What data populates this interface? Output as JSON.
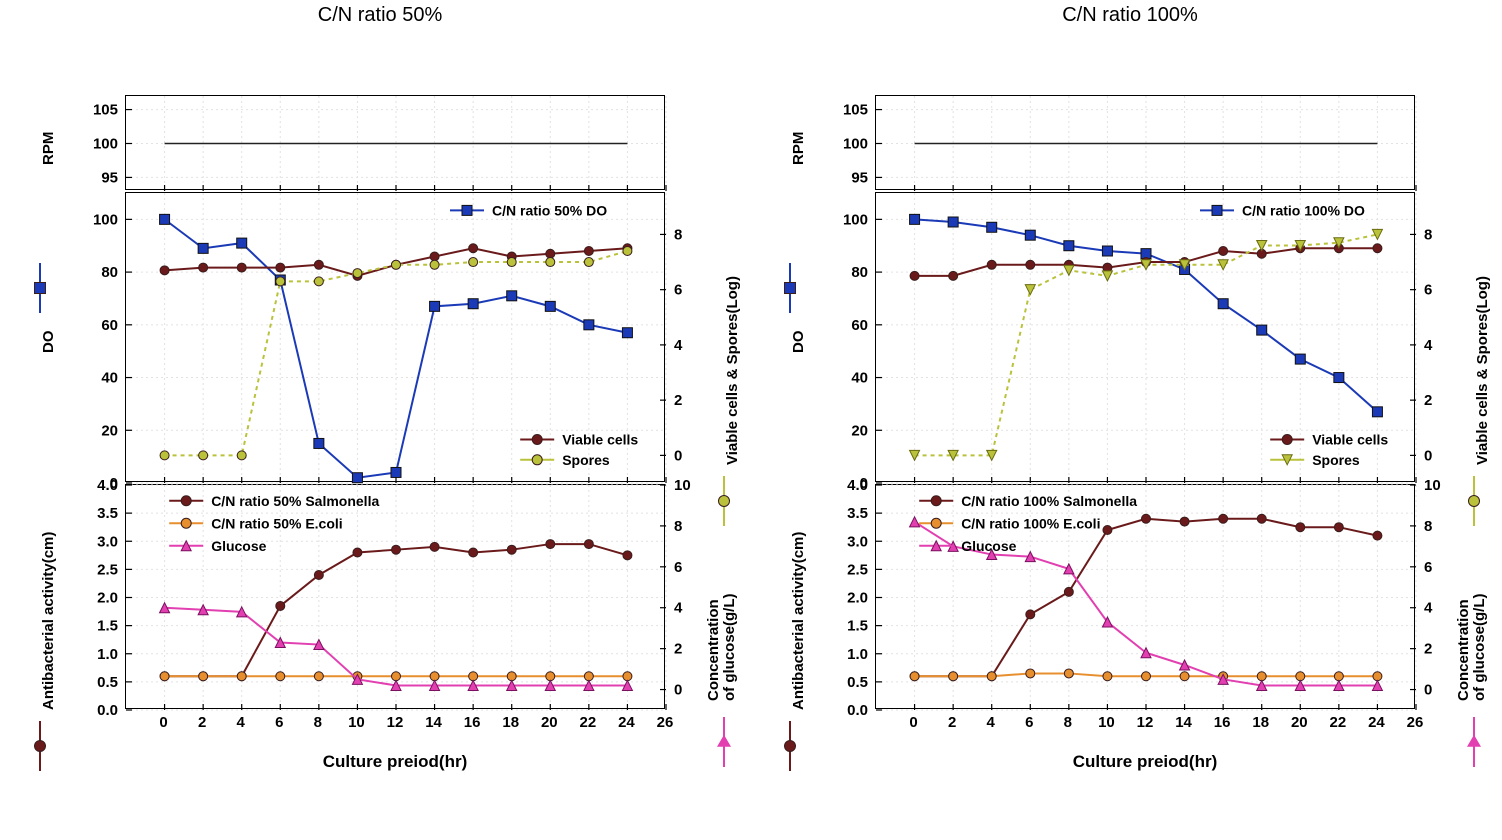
{
  "global": {
    "x": {
      "min": -2,
      "max": 26,
      "ticks": [
        0,
        2,
        4,
        6,
        8,
        10,
        12,
        14,
        16,
        18,
        20,
        22,
        24,
        26
      ],
      "label": "Culture preiod(hr)"
    },
    "grid_color": "#e2e2e2",
    "grid_dash": "2,3",
    "bg": "#ffffff"
  },
  "left": {
    "title": "C/N ratio 50%",
    "rpm": {
      "ylim": [
        93,
        107
      ],
      "yticks": [
        95,
        100,
        105
      ],
      "ylabel": "RPM",
      "series": [
        {
          "name": "RPM",
          "color": "#222222",
          "width": 1.5,
          "marker": "none",
          "points": [
            [
              0,
              100
            ],
            [
              2,
              100
            ],
            [
              4,
              100
            ],
            [
              6,
              100
            ],
            [
              8,
              100
            ],
            [
              10,
              100
            ],
            [
              12,
              100
            ],
            [
              14,
              100
            ],
            [
              16,
              100
            ],
            [
              18,
              100
            ],
            [
              20,
              100
            ],
            [
              22,
              100
            ],
            [
              24,
              100
            ]
          ]
        }
      ]
    },
    "do": {
      "ylim": [
        0,
        110
      ],
      "yticks": [
        0,
        20,
        40,
        60,
        80,
        100
      ],
      "y2lim": [
        -1,
        9.5
      ],
      "y2ticks": [
        0,
        2,
        4,
        6,
        8
      ],
      "ylabel": "DO",
      "y2label": "Viable cells & Spores(Log)",
      "legend": [
        {
          "label": "C/N ratio 50%  DO",
          "color": "#1b3ab7",
          "marker": "square"
        },
        {
          "label": "Viable cells",
          "color": "#6a1a1a",
          "marker": "circle"
        },
        {
          "label": "Spores",
          "color": "#b9c23a",
          "marker": "circle"
        }
      ],
      "legend_pos_top": [
        [
          0.6,
          0.06
        ]
      ],
      "legend_pos_bot": [
        [
          0.73,
          0.85
        ],
        [
          0.73,
          0.92
        ]
      ],
      "series": [
        {
          "name": "DO",
          "axis": "y",
          "color": "#1b3ab7",
          "width": 2,
          "marker": "square",
          "marker_size": 10,
          "points": [
            [
              0,
              100
            ],
            [
              2,
              89
            ],
            [
              4,
              91
            ],
            [
              6,
              77
            ],
            [
              8,
              15
            ],
            [
              10,
              2
            ],
            [
              12,
              4
            ],
            [
              14,
              67
            ],
            [
              16,
              68
            ],
            [
              18,
              71
            ],
            [
              20,
              67
            ],
            [
              22,
              60
            ],
            [
              24,
              57
            ]
          ]
        },
        {
          "name": "Viable cells",
          "axis": "y2",
          "color": "#6a1a1a",
          "width": 2,
          "marker": "circle",
          "marker_size": 9,
          "points": [
            [
              0,
              6.7
            ],
            [
              2,
              6.8
            ],
            [
              4,
              6.8
            ],
            [
              6,
              6.8
            ],
            [
              8,
              6.9
            ],
            [
              10,
              6.5
            ],
            [
              12,
              6.9
            ],
            [
              14,
              7.2
            ],
            [
              16,
              7.5
            ],
            [
              18,
              7.2
            ],
            [
              20,
              7.3
            ],
            [
              22,
              7.4
            ],
            [
              24,
              7.5
            ]
          ]
        },
        {
          "name": "Spores",
          "axis": "y2",
          "dash": "4,4",
          "color": "#b9c23a",
          "width": 2,
          "marker": "circle",
          "marker_size": 9,
          "points": [
            [
              0,
              0.0
            ],
            [
              2,
              0.0
            ],
            [
              4,
              0.0
            ],
            [
              6,
              6.3
            ],
            [
              8,
              6.3
            ],
            [
              10,
              6.6
            ],
            [
              12,
              6.9
            ],
            [
              14,
              6.9
            ],
            [
              16,
              7.0
            ],
            [
              18,
              7.0
            ],
            [
              20,
              7.0
            ],
            [
              22,
              7.0
            ],
            [
              24,
              7.4
            ]
          ]
        }
      ]
    },
    "ab": {
      "ylim": [
        0,
        4.0
      ],
      "yticks": [
        0.0,
        0.5,
        1.0,
        1.5,
        2.0,
        2.5,
        3.0,
        3.5,
        4.0
      ],
      "y2lim": [
        -1,
        10
      ],
      "y2ticks": [
        0,
        2,
        4,
        6,
        8,
        10
      ],
      "ylabel": "Antibacterial activity(cm)",
      "y2label": "Concentration\nof glucose(g/L)",
      "legend": [
        {
          "label": "C/N ratio 50% Salmonella",
          "color": "#6a1a1a",
          "marker": "circle"
        },
        {
          "label": "C/N ratio 50% E.coli",
          "color": "#e78f2e",
          "marker": "circle"
        },
        {
          "label": "Glucose",
          "color": "#e23fb1",
          "marker": "triangle"
        }
      ],
      "series": [
        {
          "name": "Salmonella",
          "axis": "y",
          "color": "#6a1a1a",
          "width": 2,
          "marker": "circle",
          "marker_size": 9,
          "points": [
            [
              0,
              0.6
            ],
            [
              2,
              0.6
            ],
            [
              4,
              0.6
            ],
            [
              6,
              1.85
            ],
            [
              8,
              2.4
            ],
            [
              10,
              2.8
            ],
            [
              12,
              2.85
            ],
            [
              14,
              2.9
            ],
            [
              16,
              2.8
            ],
            [
              18,
              2.85
            ],
            [
              20,
              2.95
            ],
            [
              22,
              2.95
            ],
            [
              24,
              2.75
            ]
          ]
        },
        {
          "name": "E.coli",
          "axis": "y",
          "color": "#e78f2e",
          "width": 2,
          "marker": "circle",
          "marker_size": 9,
          "points": [
            [
              0,
              0.6
            ],
            [
              2,
              0.6
            ],
            [
              4,
              0.6
            ],
            [
              6,
              0.6
            ],
            [
              8,
              0.6
            ],
            [
              10,
              0.6
            ],
            [
              12,
              0.6
            ],
            [
              14,
              0.6
            ],
            [
              16,
              0.6
            ],
            [
              18,
              0.6
            ],
            [
              20,
              0.6
            ],
            [
              22,
              0.6
            ],
            [
              24,
              0.6
            ]
          ]
        },
        {
          "name": "Glucose",
          "axis": "y2",
          "color": "#e23fb1",
          "width": 2,
          "marker": "triangle",
          "marker_size": 10,
          "points": [
            [
              0,
              4.0
            ],
            [
              2,
              3.9
            ],
            [
              4,
              3.8
            ],
            [
              6,
              2.3
            ],
            [
              8,
              2.2
            ],
            [
              10,
              0.5
            ],
            [
              12,
              0.2
            ],
            [
              14,
              0.2
            ],
            [
              16,
              0.2
            ],
            [
              18,
              0.2
            ],
            [
              20,
              0.2
            ],
            [
              22,
              0.2
            ],
            [
              24,
              0.2
            ]
          ]
        }
      ]
    }
  },
  "right": {
    "title": "C/N ratio 100%",
    "rpm": {
      "ylim": [
        93,
        107
      ],
      "yticks": [
        95,
        100,
        105
      ],
      "ylabel": "RPM",
      "series": [
        {
          "name": "RPM",
          "color": "#222222",
          "width": 1.5,
          "marker": "none",
          "points": [
            [
              0,
              100
            ],
            [
              2,
              100
            ],
            [
              4,
              100
            ],
            [
              6,
              100
            ],
            [
              8,
              100
            ],
            [
              10,
              100
            ],
            [
              12,
              100
            ],
            [
              14,
              100
            ],
            [
              16,
              100
            ],
            [
              18,
              100
            ],
            [
              20,
              100
            ],
            [
              22,
              100
            ],
            [
              24,
              100
            ]
          ]
        }
      ]
    },
    "do": {
      "ylim": [
        0,
        110
      ],
      "yticks": [
        0,
        20,
        40,
        60,
        80,
        100
      ],
      "y2lim": [
        -1,
        9.5
      ],
      "y2ticks": [
        0,
        2,
        4,
        6,
        8
      ],
      "ylabel": "DO",
      "y2label": "Viable cells & Spores(Log)",
      "legend": [
        {
          "label": "C/N ratio 100%  DO",
          "color": "#1b3ab7",
          "marker": "square"
        },
        {
          "label": "Viable cells",
          "color": "#6a1a1a",
          "marker": "circle"
        },
        {
          "label": "Spores",
          "color": "#b9c23a",
          "marker": "triangle-down"
        }
      ],
      "legend_pos_top": [
        [
          0.6,
          0.06
        ]
      ],
      "legend_pos_bot": [
        [
          0.73,
          0.85
        ],
        [
          0.73,
          0.92
        ]
      ],
      "series": [
        {
          "name": "DO",
          "axis": "y",
          "color": "#1b3ab7",
          "width": 2,
          "marker": "square",
          "marker_size": 10,
          "points": [
            [
              0,
              100
            ],
            [
              2,
              99
            ],
            [
              4,
              97
            ],
            [
              6,
              94
            ],
            [
              8,
              90
            ],
            [
              10,
              88
            ],
            [
              12,
              87
            ],
            [
              14,
              81
            ],
            [
              16,
              68
            ],
            [
              18,
              58
            ],
            [
              20,
              47
            ],
            [
              22,
              40
            ],
            [
              24,
              27
            ]
          ]
        },
        {
          "name": "Viable cells",
          "axis": "y2",
          "color": "#6a1a1a",
          "width": 2,
          "marker": "circle",
          "marker_size": 9,
          "points": [
            [
              0,
              6.5
            ],
            [
              2,
              6.5
            ],
            [
              4,
              6.9
            ],
            [
              6,
              6.9
            ],
            [
              8,
              6.9
            ],
            [
              10,
              6.8
            ],
            [
              12,
              7.0
            ],
            [
              14,
              7.0
            ],
            [
              16,
              7.4
            ],
            [
              18,
              7.3
            ],
            [
              20,
              7.5
            ],
            [
              22,
              7.5
            ],
            [
              24,
              7.5
            ]
          ]
        },
        {
          "name": "Spores",
          "axis": "y2",
          "dash": "4,4",
          "color": "#b9c23a",
          "width": 2,
          "marker": "triangle-down",
          "marker_size": 10,
          "points": [
            [
              0,
              0.0
            ],
            [
              2,
              0.0
            ],
            [
              4,
              0.0
            ],
            [
              6,
              6.0
            ],
            [
              8,
              6.7
            ],
            [
              10,
              6.5
            ],
            [
              12,
              6.9
            ],
            [
              14,
              6.9
            ],
            [
              16,
              6.9
            ],
            [
              18,
              7.6
            ],
            [
              20,
              7.6
            ],
            [
              22,
              7.7
            ],
            [
              24,
              8.0
            ]
          ]
        }
      ]
    },
    "ab": {
      "ylim": [
        0,
        4.0
      ],
      "yticks": [
        0.0,
        0.5,
        1.0,
        1.5,
        2.0,
        2.5,
        3.0,
        3.5,
        4.0
      ],
      "y2lim": [
        -1,
        10
      ],
      "y2ticks": [
        0,
        2,
        4,
        6,
        8,
        10
      ],
      "ylabel": "Antibacterial activity(cm)",
      "y2label": "Concentration\nof glucose(g/L)",
      "legend": [
        {
          "label": "C/N ratio 100% Salmonella",
          "color": "#6a1a1a",
          "marker": "circle"
        },
        {
          "label": "C/N ratio 100% E.coli",
          "color": "#e78f2e",
          "marker": "circle"
        },
        {
          "label": "Glucose",
          "color": "#e23fb1",
          "marker": "triangle"
        }
      ],
      "series": [
        {
          "name": "Salmonella",
          "axis": "y",
          "color": "#6a1a1a",
          "width": 2,
          "marker": "circle",
          "marker_size": 9,
          "points": [
            [
              0,
              0.6
            ],
            [
              2,
              0.6
            ],
            [
              4,
              0.6
            ],
            [
              6,
              1.7
            ],
            [
              8,
              2.1
            ],
            [
              10,
              3.2
            ],
            [
              12,
              3.4
            ],
            [
              14,
              3.35
            ],
            [
              16,
              3.4
            ],
            [
              18,
              3.4
            ],
            [
              20,
              3.25
            ],
            [
              22,
              3.25
            ],
            [
              24,
              3.1
            ]
          ]
        },
        {
          "name": "E.coli",
          "axis": "y",
          "color": "#e78f2e",
          "width": 2,
          "marker": "circle",
          "marker_size": 9,
          "points": [
            [
              0,
              0.6
            ],
            [
              2,
              0.6
            ],
            [
              4,
              0.6
            ],
            [
              6,
              0.65
            ],
            [
              8,
              0.65
            ],
            [
              10,
              0.6
            ],
            [
              12,
              0.6
            ],
            [
              14,
              0.6
            ],
            [
              16,
              0.6
            ],
            [
              18,
              0.6
            ],
            [
              20,
              0.6
            ],
            [
              22,
              0.6
            ],
            [
              24,
              0.6
            ]
          ]
        },
        {
          "name": "Glucose",
          "axis": "y2",
          "color": "#e23fb1",
          "width": 2,
          "marker": "triangle",
          "marker_size": 10,
          "points": [
            [
              0,
              8.2
            ],
            [
              2,
              7.0
            ],
            [
              4,
              6.6
            ],
            [
              6,
              6.5
            ],
            [
              8,
              5.9
            ],
            [
              10,
              3.3
            ],
            [
              12,
              1.8
            ],
            [
              14,
              1.2
            ],
            [
              16,
              0.5
            ],
            [
              18,
              0.2
            ],
            [
              20,
              0.2
            ],
            [
              22,
              0.2
            ],
            [
              24,
              0.2
            ]
          ]
        }
      ]
    }
  },
  "axis_markers": {
    "do_left": {
      "color": "#1b3ab7",
      "marker": "square"
    },
    "vs_right": {
      "color": "#b9c23a",
      "marker": "circle"
    },
    "ab_left": {
      "color": "#6a1a1a",
      "marker": "circle"
    },
    "gl_right": {
      "color": "#e23fb1",
      "marker": "triangle"
    }
  }
}
